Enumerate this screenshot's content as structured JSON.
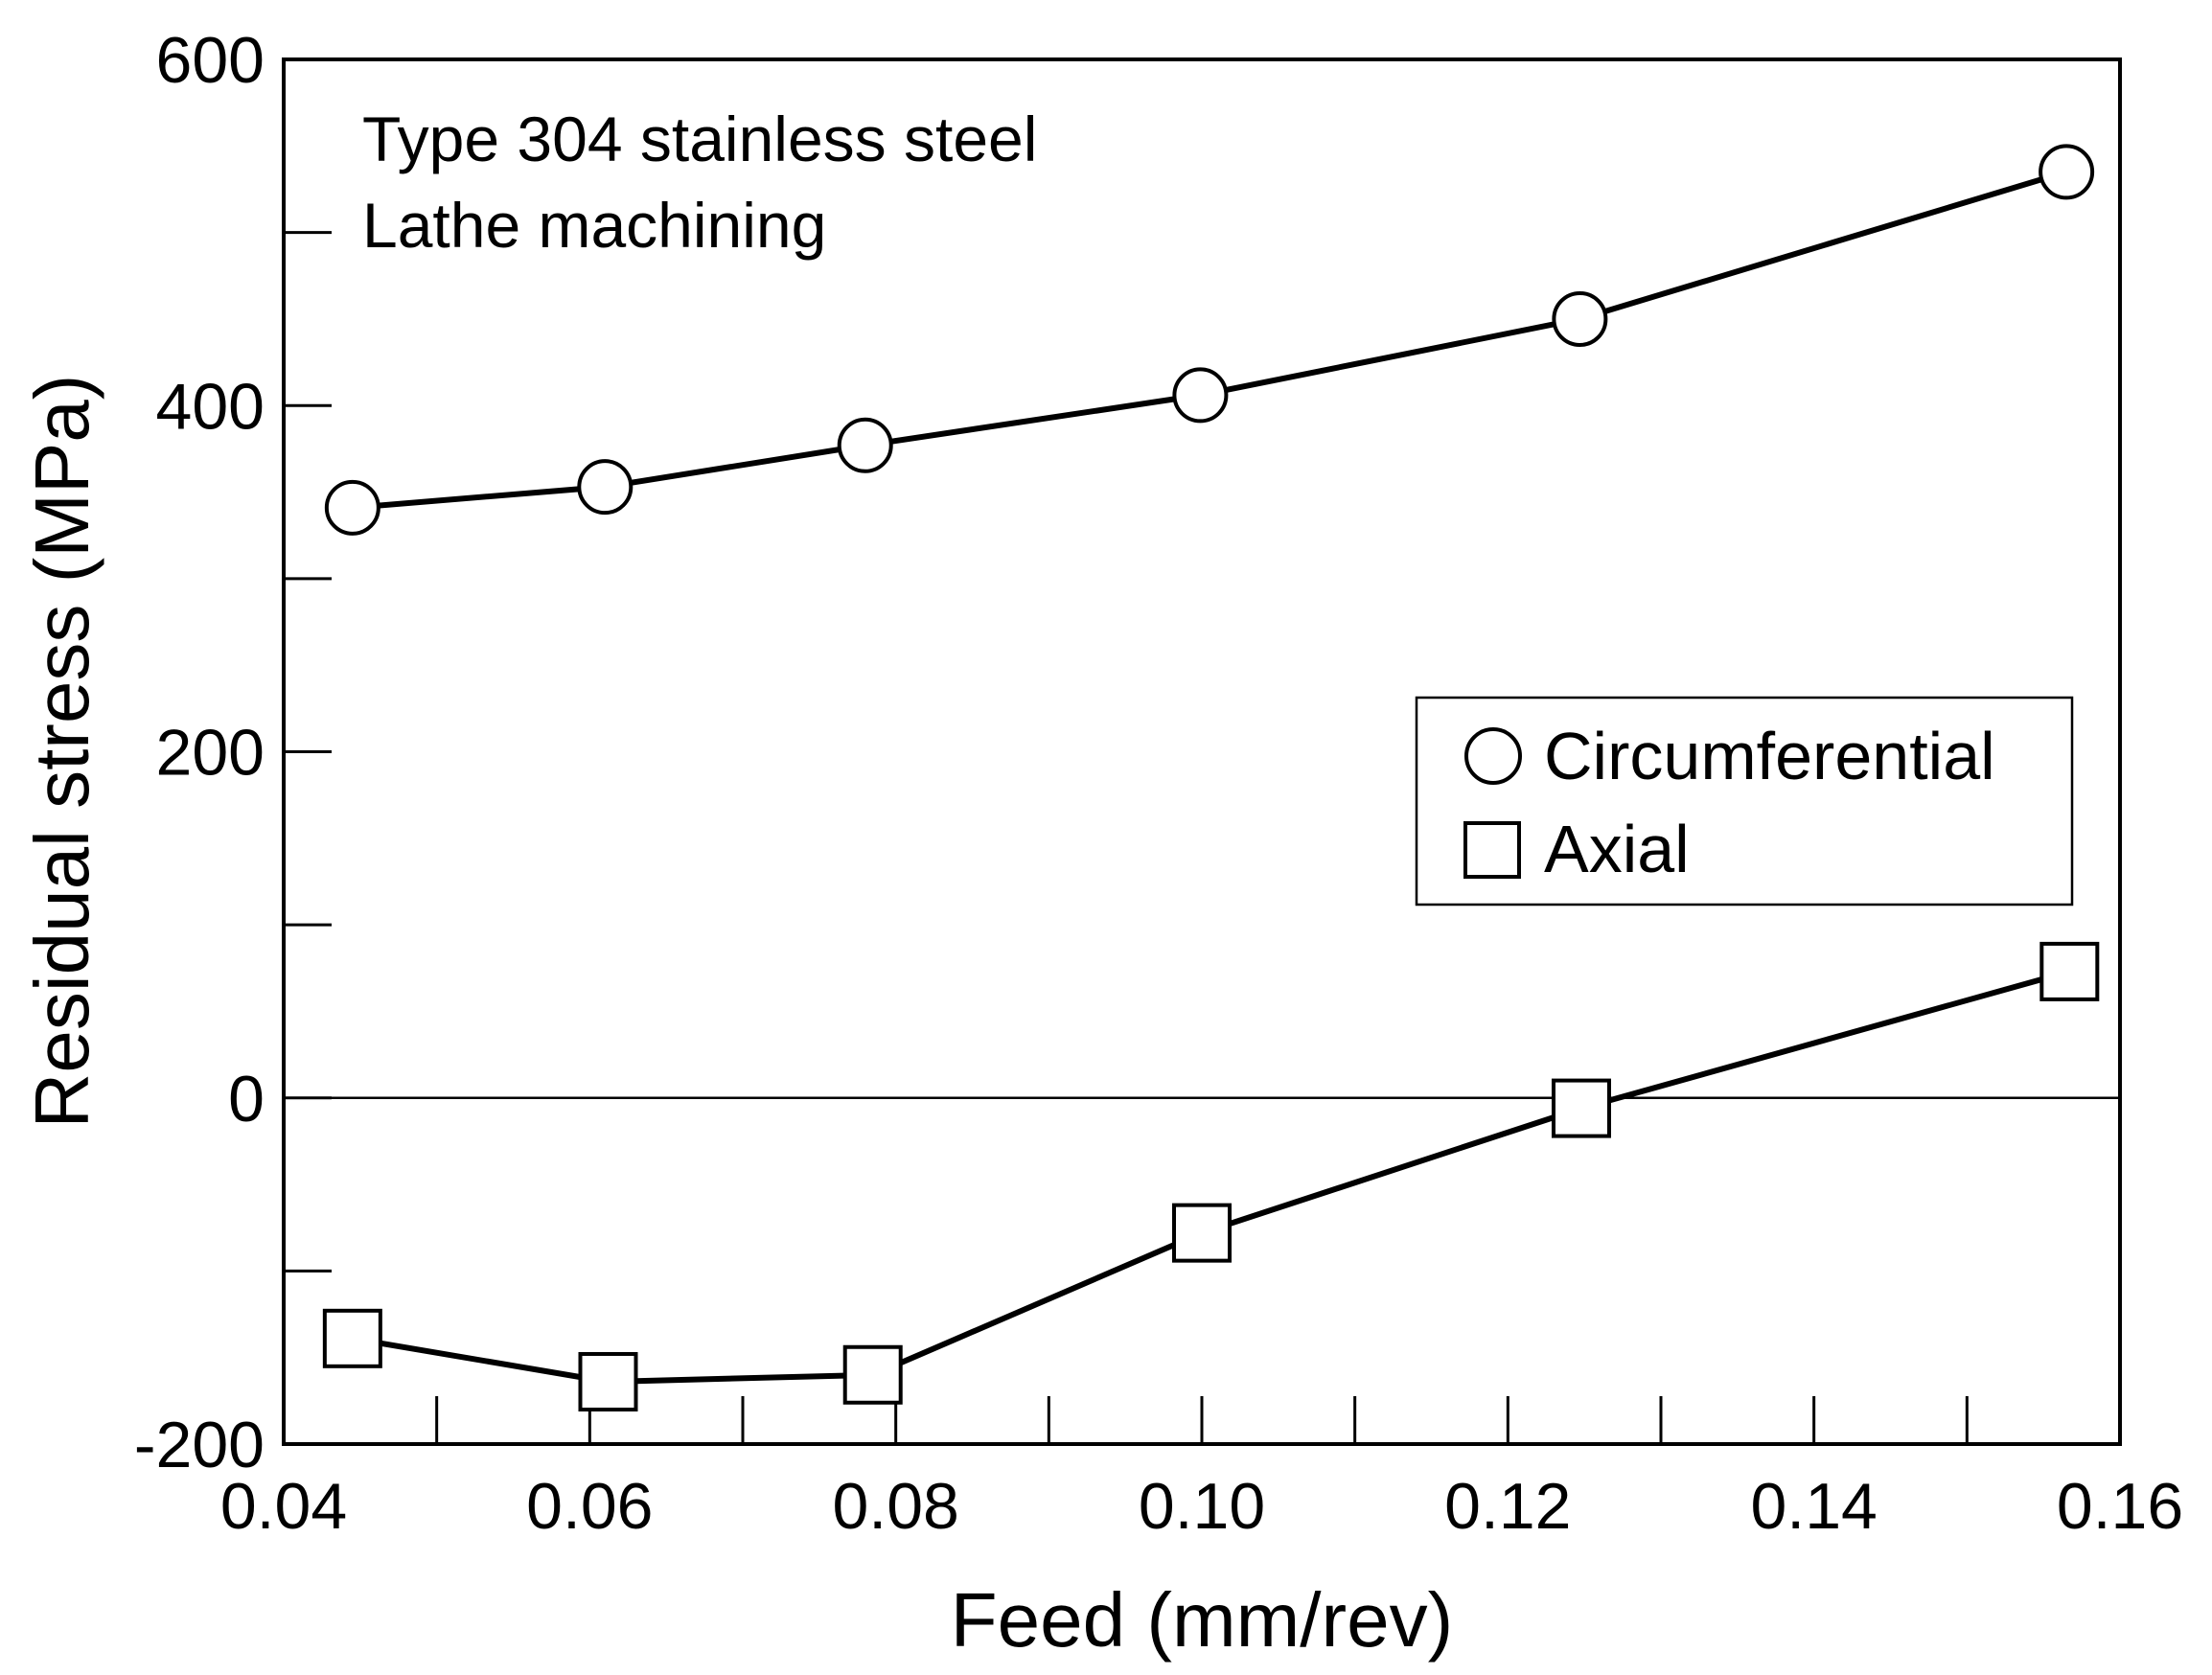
{
  "chart_data": {
    "type": "line",
    "title": "",
    "xlabel": "Feed (mm/rev)",
    "ylabel": "Residual stress (MPa)",
    "xlim": [
      0.04,
      0.16
    ],
    "ylim": [
      -200,
      600
    ],
    "x_ticks": [
      0.04,
      0.06,
      0.08,
      0.1,
      0.12,
      0.14,
      0.16
    ],
    "x_tick_labels": [
      "0.04",
      "0.06",
      "0.08",
      "0.10",
      "0.12",
      "0.14",
      "0.16"
    ],
    "x_minor_ticks": [
      0.05,
      0.07,
      0.09,
      0.11,
      0.13,
      0.15
    ],
    "y_ticks": [
      -200,
      0,
      200,
      400,
      600
    ],
    "y_tick_labels": [
      "-200",
      "0",
      "200",
      "400",
      "600"
    ],
    "y_minor_ticks": [
      -100,
      100,
      300,
      500
    ],
    "reference_line_y": 0,
    "grid": false,
    "legend_position": "center-right",
    "annotations": [
      "Type 304 stainless steel",
      "Lathe machining"
    ],
    "series": [
      {
        "name": "Circumferential",
        "marker": "circle",
        "x": [
          0.0445,
          0.061,
          0.078,
          0.0999,
          0.1247,
          0.1565
        ],
        "y": [
          341,
          353,
          377,
          406,
          450,
          535
        ]
      },
      {
        "name": "Axial",
        "marker": "square",
        "x": [
          0.0445,
          0.0612,
          0.0785,
          0.1,
          0.1248,
          0.1567
        ],
        "y": [
          -139,
          -164,
          -160,
          -78,
          -6,
          73
        ]
      }
    ]
  }
}
